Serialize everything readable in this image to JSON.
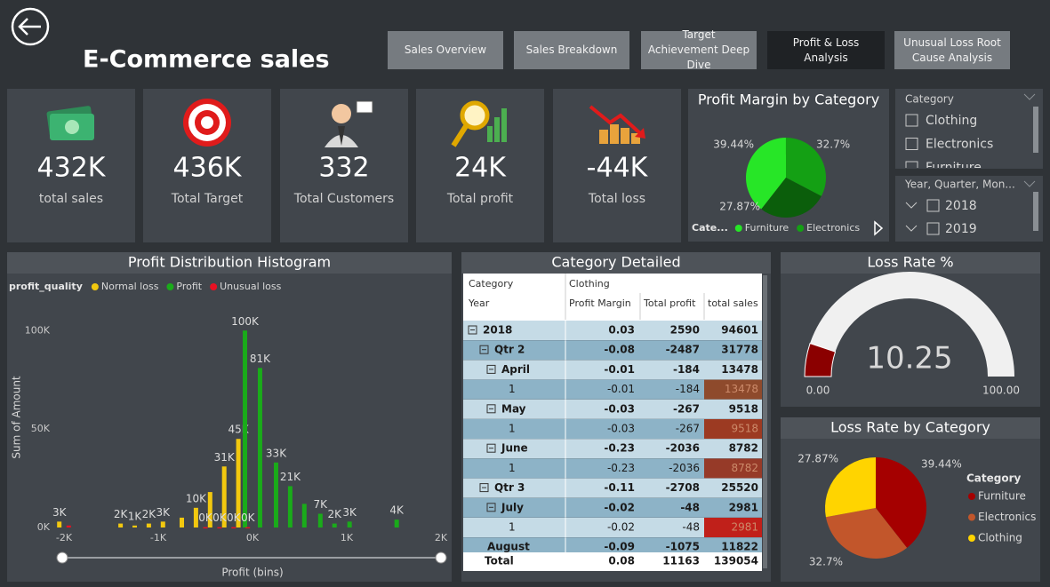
{
  "header": {
    "title": "E-Commerce sales"
  },
  "nav": [
    "Sales Overview",
    "Sales Breakdown",
    "Target Achievement Deep Dive",
    "Profit & Loss Analysis",
    "Unusual Loss Root Cause Analysis"
  ],
  "kpis": [
    {
      "value": "432K",
      "label": "total sales"
    },
    {
      "value": "436K",
      "label": "Total Target"
    },
    {
      "value": "332",
      "label": "Total Customers"
    },
    {
      "value": "24K",
      "label": "Total profit"
    },
    {
      "value": "-44K",
      "label": "Total loss"
    }
  ],
  "slicers": [
    {
      "title": "Category",
      "items": [
        "Clothing",
        "Electronics",
        "Furniture"
      ]
    },
    {
      "title": "Year, Quarter, Mon...",
      "items": [
        "2018",
        "2019"
      ]
    }
  ],
  "table": {
    "title": "Category Detailed",
    "header": [
      [
        "Category",
        "Clothing"
      ],
      [
        "Year",
        "Profit Margin",
        "Total profit",
        "total sales"
      ]
    ],
    "rows": [
      {
        "label": "2018",
        "cells": [
          "0.03",
          "2590",
          "94601"
        ],
        "children": [
          {
            "label": "Qtr 2",
            "cells": [
              "-0.08",
              "-2487",
              "31778"
            ],
            "children": [
              {
                "label": "April",
                "cells": [
                  "-0.01",
                  "-184",
                  "13478"
                ],
                "children": [
                  {
                    "label": "1",
                    "cells": [
                      "-0.01",
                      "-184",
                      "13478"
                    ],
                    "highlight": "#8e4a2c"
                  }
                ]
              },
              {
                "label": "May",
                "cells": [
                  "-0.03",
                  "-267",
                  "9518"
                ],
                "children": [
                  {
                    "label": "1",
                    "cells": [
                      "-0.03",
                      "-267",
                      "9518"
                    ],
                    "highlight": "#9c3a22"
                  }
                ]
              },
              {
                "label": "June",
                "cells": [
                  "-0.23",
                  "-2036",
                  "8782"
                ],
                "children": [
                  {
                    "label": "1",
                    "cells": [
                      "-0.23",
                      "-2036",
                      "8782"
                    ],
                    "highlight": "#963a28"
                  }
                ]
              }
            ]
          },
          {
            "label": "Qtr 3",
            "cells": [
              "-0.11",
              "-2708",
              "25520"
            ],
            "children": [
              {
                "label": "July",
                "cells": [
                  "-0.02",
                  "-48",
                  "2981"
                ],
                "children": [
                  {
                    "label": "1",
                    "cells": [
                      "-0.02",
                      "-48",
                      "2981"
                    ],
                    "highlight": "#c0201a"
                  }
                ]
              },
              {
                "label": "August",
                "cells": [
                  "-0.09",
                  "-1075",
                  "11822"
                ]
              }
            ]
          }
        ]
      }
    ],
    "total": {
      "label": "Total",
      "cells": [
        "0.08",
        "11163",
        "139054"
      ]
    }
  },
  "chart_data": [
    {
      "type": "pie",
      "title": "Profit Margin by Category",
      "legend_title": "Cate...",
      "categories": [
        "Furniture",
        "Electronics",
        "Clothing"
      ],
      "values": [
        39.44,
        32.7,
        27.87
      ],
      "value_labels": [
        "39.44%",
        "32.7%",
        "27.87%"
      ],
      "colors": [
        "#27e627",
        "#14a014",
        "#0b5e0b"
      ]
    },
    {
      "type": "bar",
      "title": "Profit Distribution Histogram",
      "legend_title": "profit_quality",
      "x_label": "Profit (bins)",
      "y_label": "Sum of Amount",
      "xlim": [
        -2000,
        2000
      ],
      "ylim": [
        0,
        115000
      ],
      "xticks": [
        {
          "value": -2000,
          "label": "-2K"
        },
        {
          "value": -1000,
          "label": "-1K"
        },
        {
          "value": 0,
          "label": "0K"
        },
        {
          "value": 1000,
          "label": "1K"
        },
        {
          "value": 2000,
          "label": "2K"
        }
      ],
      "yticks": [
        {
          "value": 0,
          "label": "0K"
        },
        {
          "value": 50000,
          "label": "50K"
        },
        {
          "value": 100000,
          "label": "100K"
        }
      ],
      "series": [
        {
          "name": "Normal loss",
          "color": "#f2c80f",
          "x": [
            -2050,
            -1400,
            -1250,
            -1100,
            -950,
            -750,
            -600,
            -450,
            -300,
            -150
          ],
          "values": [
            3000,
            2000,
            1000,
            2000,
            3000,
            5000,
            10000,
            18000,
            31000,
            45000
          ],
          "value_labels": [
            "3K",
            "2K",
            "1K",
            "2K",
            "3K",
            null,
            "10K",
            null,
            "31K",
            "45K"
          ]
        },
        {
          "name": "Profit",
          "color": "#1aab1a",
          "x": [
            -80,
            80,
            250,
            400,
            550,
            720,
            870,
            1030,
            1530
          ],
          "values": [
            100000,
            81000,
            33000,
            21000,
            12000,
            7000,
            2000,
            3000,
            4000
          ],
          "value_labels": [
            "100K",
            "81K",
            "33K",
            "21K",
            null,
            "7K",
            "2K",
            "3K",
            "4K"
          ]
        },
        {
          "name": "Unusual loss",
          "color": "#e81123",
          "x": [
            -1950,
            -500,
            -350,
            -200,
            -50
          ],
          "values": [
            1000,
            200,
            200,
            200,
            200
          ],
          "value_labels": [
            null,
            "0K",
            "0K",
            "0K",
            "0K"
          ]
        }
      ]
    },
    {
      "type": "gauge",
      "title": "Loss Rate %",
      "value": 10.25,
      "ylim": [
        0,
        100
      ],
      "yticks": [
        {
          "value": 0,
          "label": "0.00"
        },
        {
          "value": 100,
          "label": "100.00"
        }
      ],
      "color": "#8b0000",
      "track_color": "#f0f0f0"
    },
    {
      "type": "pie",
      "title": "Loss Rate by Category",
      "legend_title": "Category",
      "categories": [
        "Furniture",
        "Electronics",
        "Clothing"
      ],
      "values": [
        39.44,
        32.7,
        27.87
      ],
      "value_labels": [
        "39.44%",
        "32.7%",
        "27.87%"
      ],
      "colors": [
        "#a50000",
        "#c2562b",
        "#ffd400"
      ]
    }
  ]
}
